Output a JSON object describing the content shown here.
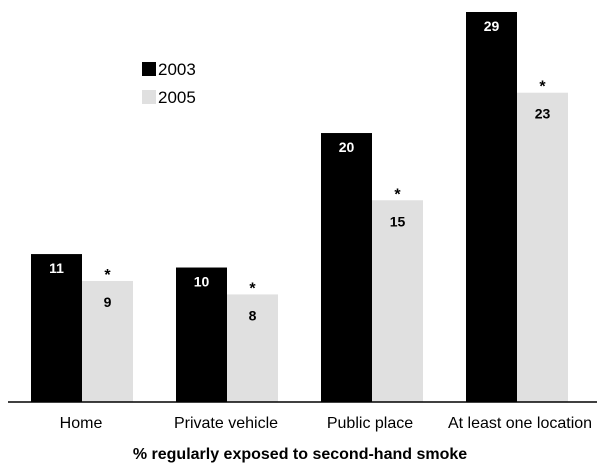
{
  "chart_data": {
    "type": "bar",
    "title": "",
    "xlabel": "% regularly exposed to second-hand smoke",
    "ylabel": "",
    "ylim": [
      0,
      29
    ],
    "grid": false,
    "legend_position": "top-left",
    "categories": [
      "Home",
      "Private vehicle",
      "Public place",
      "At least one location"
    ],
    "series": [
      {
        "name": "2003",
        "values": [
          11,
          10,
          20,
          29
        ],
        "color": "#000000"
      },
      {
        "name": "2005",
        "values": [
          9,
          8,
          15,
          23
        ],
        "color": "#e0e0e0"
      }
    ],
    "significance_marker": "*",
    "significant": [
      false,
      true
    ]
  }
}
